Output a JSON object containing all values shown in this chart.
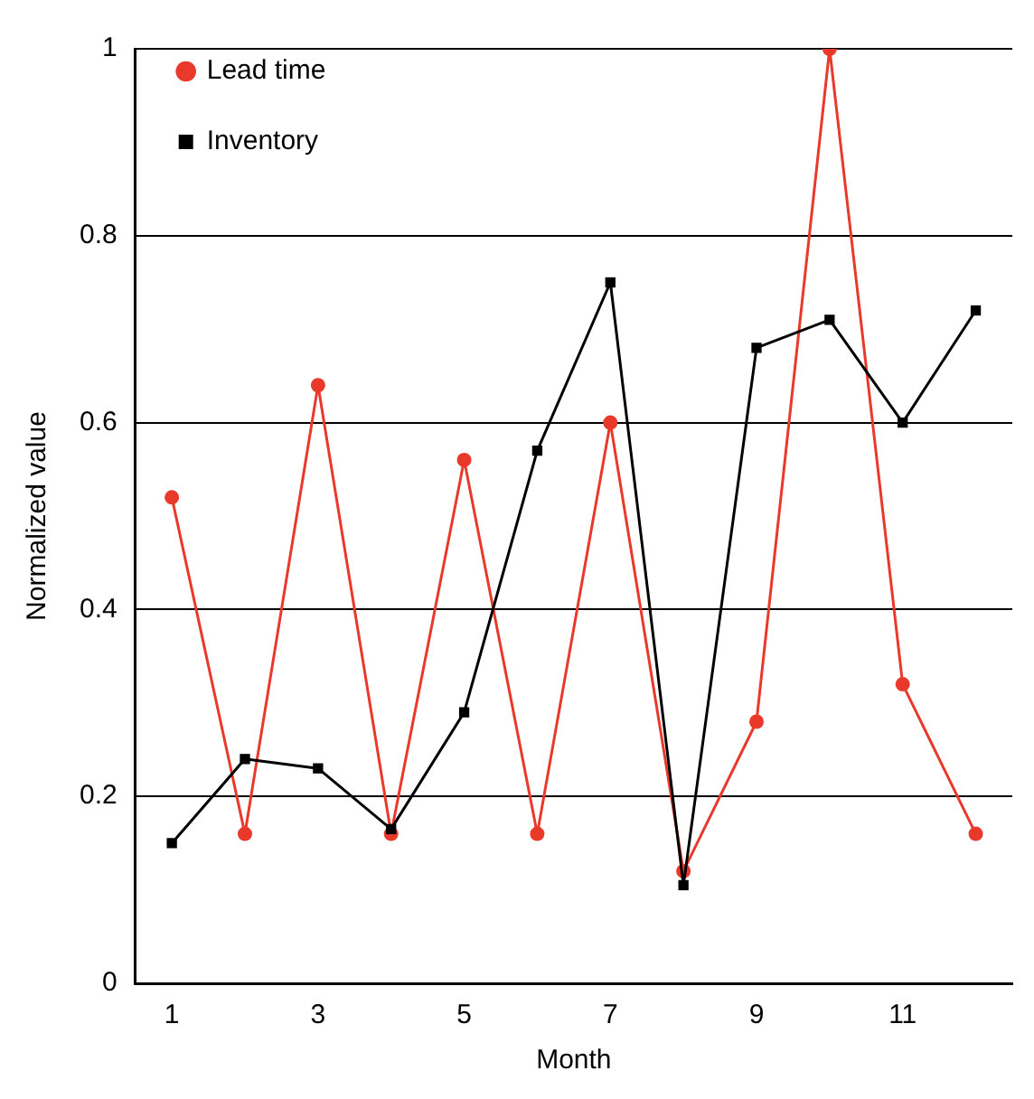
{
  "chart_data": {
    "type": "line",
    "xlabel": "Month",
    "ylabel": "Normalized value",
    "categories": [
      "1",
      null,
      "3",
      null,
      "5",
      null,
      "7",
      null,
      "9",
      null,
      "11",
      null
    ],
    "series": [
      {
        "name": "Lead time",
        "color": "#e8392b",
        "marker": "circle",
        "values": [
          0.52,
          0.16,
          0.64,
          0.16,
          0.56,
          0.16,
          0.6,
          0.12,
          0.28,
          1.0,
          0.32,
          0.16
        ]
      },
      {
        "name": "Inventory",
        "color": "#000000",
        "marker": "square",
        "values": [
          0.15,
          0.24,
          0.23,
          0.165,
          0.29,
          0.57,
          0.75,
          0.105,
          0.68,
          0.71,
          0.6,
          0.72
        ]
      }
    ],
    "ylim": [
      0,
      1
    ],
    "yticks": [
      0,
      0.2,
      0.4,
      0.6,
      0.8,
      1
    ],
    "grid": "y",
    "legend": "top left"
  }
}
